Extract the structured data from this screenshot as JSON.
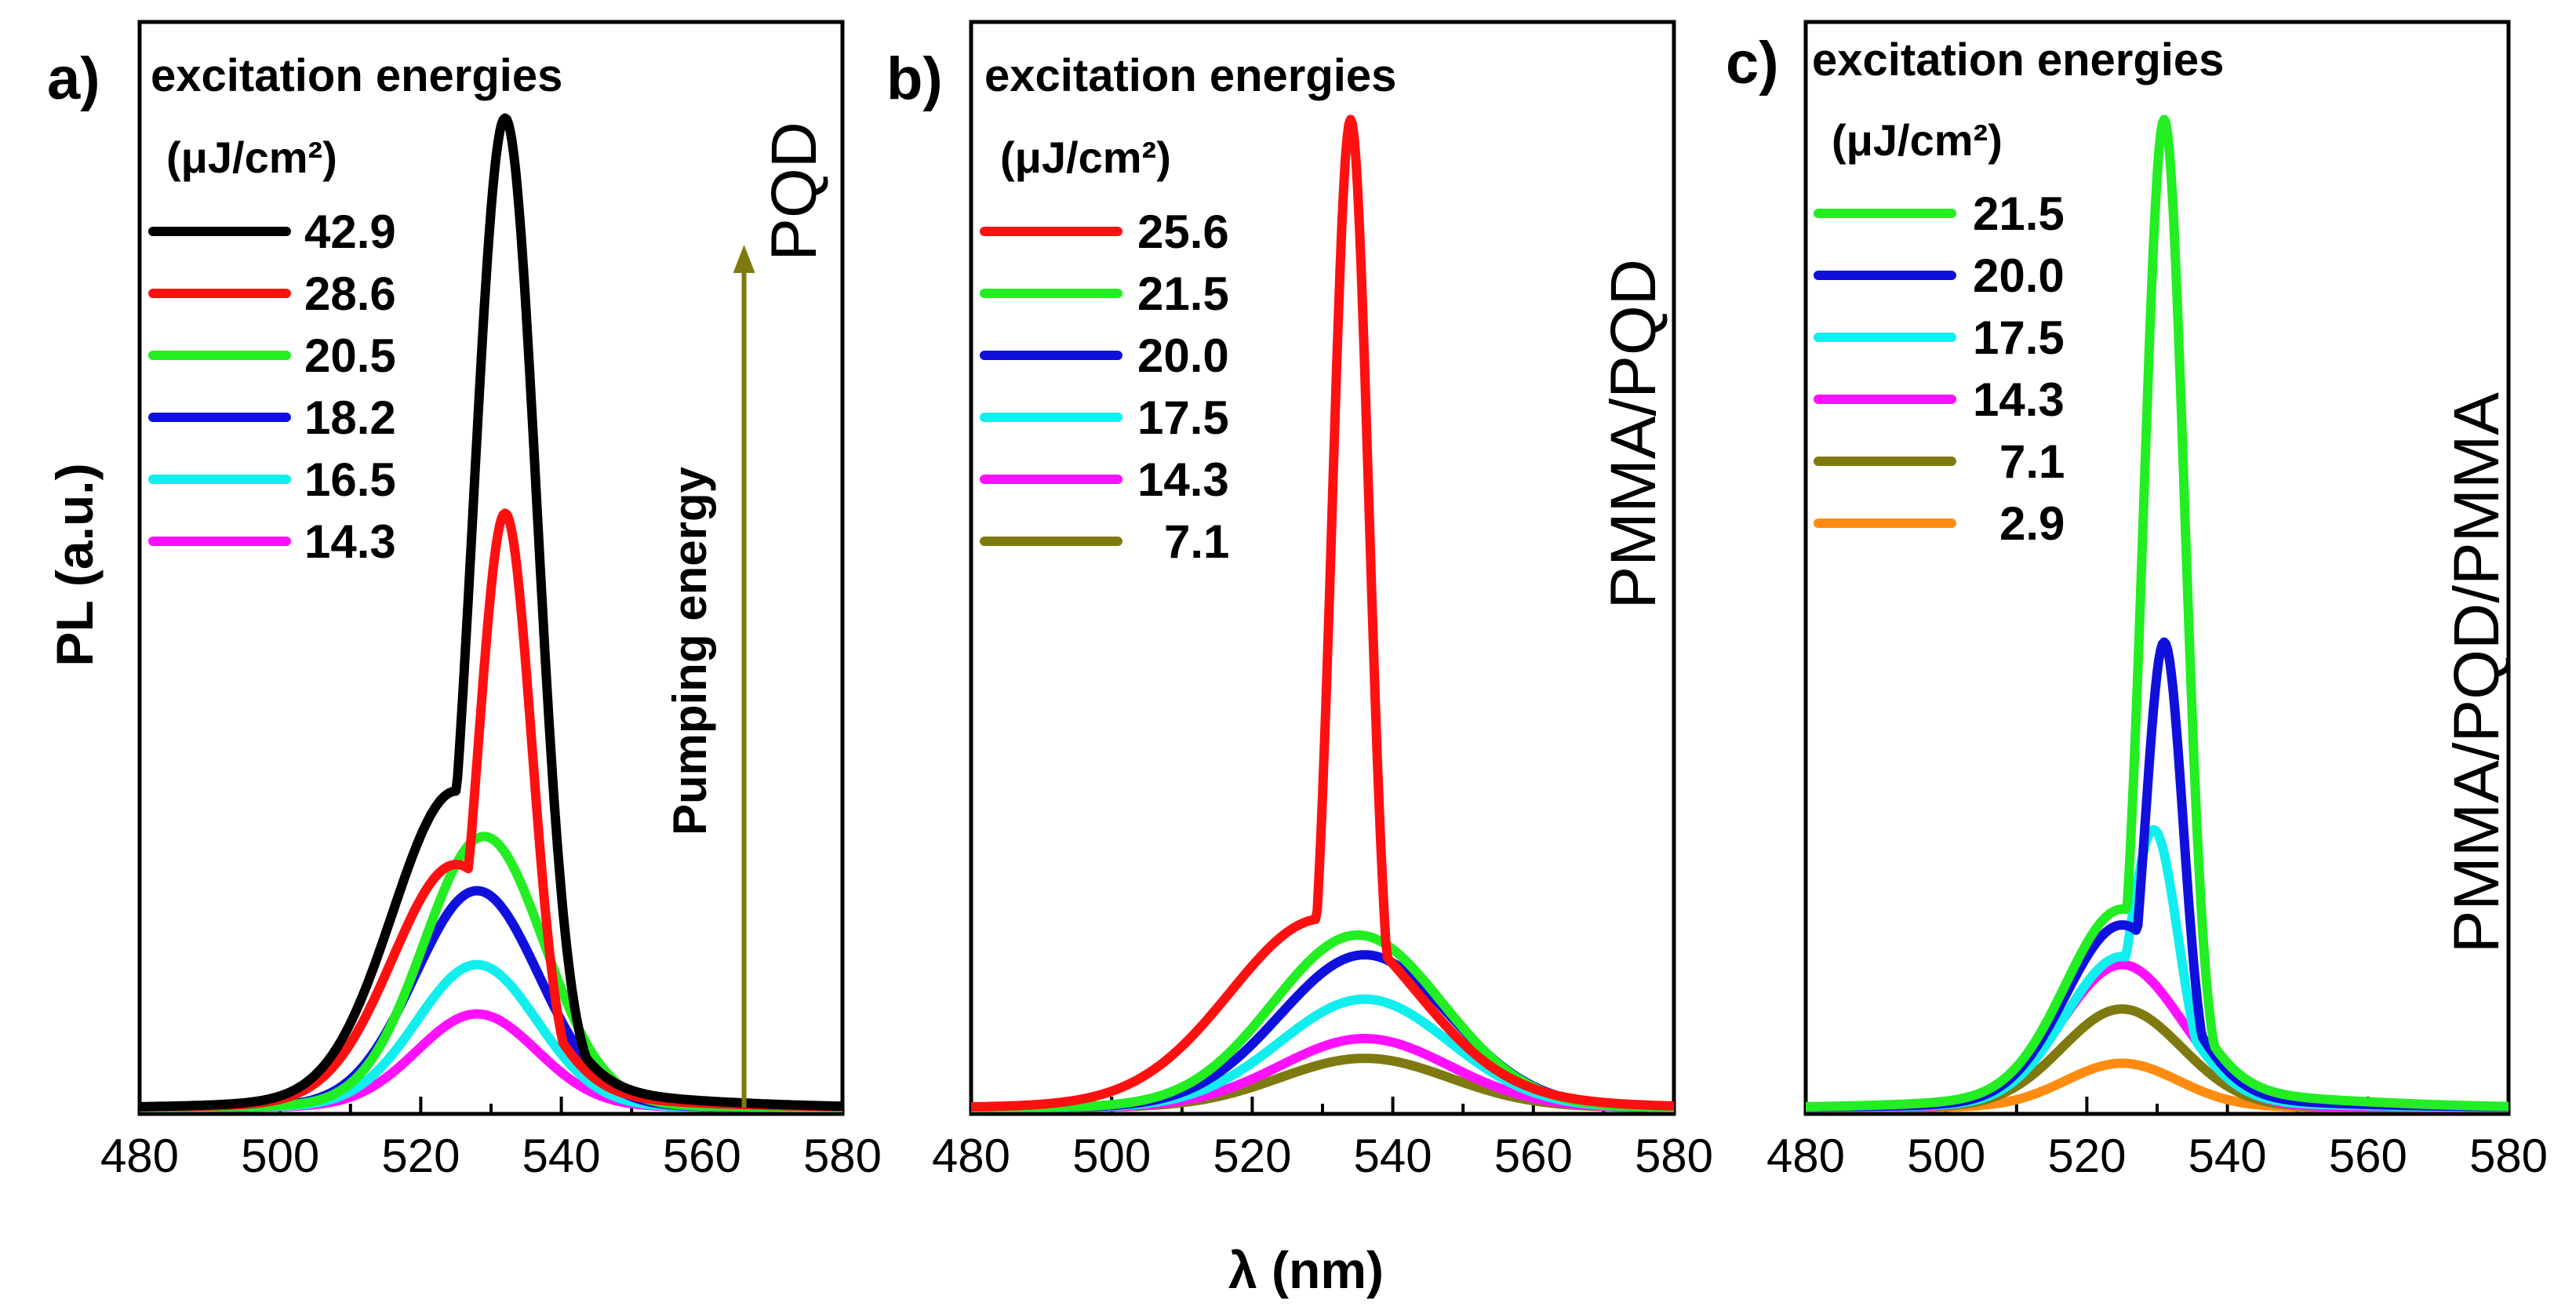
{
  "figure": {
    "ylabel": "PL (a.u.)",
    "xlabel": "λ (nm)"
  },
  "chart_data": [
    {
      "type": "line",
      "panel_label": "a)",
      "legend_title": "excitation energies",
      "legend_units": "(μJ/cm²)",
      "sample_label": "PQD",
      "arrow_label": "Pumping energy",
      "arrow_color": "#7f7a10",
      "xlim": [
        480,
        580
      ],
      "ylim": [
        0,
        1.0
      ],
      "xticks": [
        "480",
        "500",
        "520",
        "540",
        "560",
        "580"
      ],
      "series": [
        {
          "name": "42.9",
          "color": "#000000",
          "peak": 1.0,
          "center": 532,
          "width": 4.5,
          "broad_amp": 0.31,
          "broad_center": 525,
          "broad_width": 9
        },
        {
          "name": "28.6",
          "color": "#ff1010",
          "peak": 0.6,
          "center": 532,
          "width": 3.8,
          "broad_amp": 0.24,
          "broad_center": 525,
          "broad_width": 9
        },
        {
          "name": "20.5",
          "color": "#22ee22",
          "peak": 0.275,
          "center": 529,
          "width": 8.5,
          "broad_amp": 0,
          "broad_center": 525,
          "broad_width": 9
        },
        {
          "name": "18.2",
          "color": "#1010dd",
          "peak": 0.22,
          "center": 528,
          "width": 8.8,
          "broad_amp": 0,
          "broad_center": 525,
          "broad_width": 9
        },
        {
          "name": "16.5",
          "color": "#11eeee",
          "peak": 0.145,
          "center": 528,
          "width": 8.5,
          "broad_amp": 0,
          "broad_center": 525,
          "broad_width": 9
        },
        {
          "name": "14.3",
          "color": "#ff10ff",
          "peak": 0.095,
          "center": 528,
          "width": 8.5,
          "broad_amp": 0,
          "broad_center": 525,
          "broad_width": 9
        }
      ]
    },
    {
      "type": "line",
      "panel_label": "b)",
      "legend_title": "excitation energies",
      "legend_units": "(μJ/cm²)",
      "sample_label": "PMMA/PQD",
      "xlim": [
        480,
        580
      ],
      "ylim": [
        0,
        1.0
      ],
      "xticks": [
        "480",
        "500",
        "520",
        "540",
        "560",
        "580"
      ],
      "series": [
        {
          "name": "25.6",
          "color": "#ff1010",
          "peak": 1.0,
          "center": 534,
          "width": 2.6,
          "broad_amp": 0.18,
          "broad_center": 530,
          "broad_width": 13
        },
        {
          "name": "21.5",
          "color": "#22ee22",
          "peak": 0.175,
          "center": 535,
          "width": 12,
          "broad_amp": 0,
          "broad_center": 530,
          "broad_width": 13
        },
        {
          "name": "20.0",
          "color": "#1010dd",
          "peak": 0.155,
          "center": 536,
          "width": 12,
          "broad_amp": 0,
          "broad_center": 530,
          "broad_width": 13
        },
        {
          "name": "17.5",
          "color": "#11eeee",
          "peak": 0.11,
          "center": 536,
          "width": 12,
          "broad_amp": 0,
          "broad_center": 530,
          "broad_width": 13
        },
        {
          "name": "14.3",
          "color": "#ff10ff",
          "peak": 0.07,
          "center": 536,
          "width": 12,
          "broad_amp": 0,
          "broad_center": 530,
          "broad_width": 13
        },
        {
          "name": "7.1",
          "color": "#7f7a10",
          "peak": 0.05,
          "center": 536,
          "width": 12,
          "broad_amp": 0,
          "broad_center": 530,
          "broad_width": 13
        }
      ]
    },
    {
      "type": "line",
      "panel_label": "c)",
      "legend_title": "excitation energies",
      "legend_units": "(μJ/cm²)",
      "sample_label": "PMMA/PQD/PMMA",
      "xlim": [
        480,
        580
      ],
      "ylim": [
        0,
        1.0
      ],
      "xticks": [
        "480",
        "500",
        "520",
        "540",
        "560",
        "580"
      ],
      "series": [
        {
          "name": "21.5",
          "color": "#22ee22",
          "peak": 1.0,
          "center": 531,
          "width": 2.9,
          "broad_amp": 0.19,
          "broad_center": 525,
          "broad_width": 8
        },
        {
          "name": "20.0",
          "color": "#1010dd",
          "peak": 0.47,
          "center": 531,
          "width": 2.7,
          "broad_amp": 0.18,
          "broad_center": 525,
          "broad_width": 8
        },
        {
          "name": "17.5",
          "color": "#11eeee",
          "peak": 0.28,
          "center": 529.5,
          "width": 3.5,
          "broad_amp": 0.15,
          "broad_center": 525,
          "broad_width": 8
        },
        {
          "name": "14.3",
          "color": "#ff10ff",
          "peak": 0.145,
          "center": 525,
          "width": 8.5,
          "broad_amp": 0,
          "broad_center": 525,
          "broad_width": 8
        },
        {
          "name": "7.1",
          "color": "#7f7a10",
          "peak": 0.1,
          "center": 525,
          "width": 8.5,
          "broad_amp": 0,
          "broad_center": 525,
          "broad_width": 8
        },
        {
          "name": "2.9",
          "color": "#ff8c10",
          "peak": 0.045,
          "center": 525,
          "width": 8,
          "broad_amp": 0,
          "broad_center": 525,
          "broad_width": 8
        }
      ]
    }
  ]
}
